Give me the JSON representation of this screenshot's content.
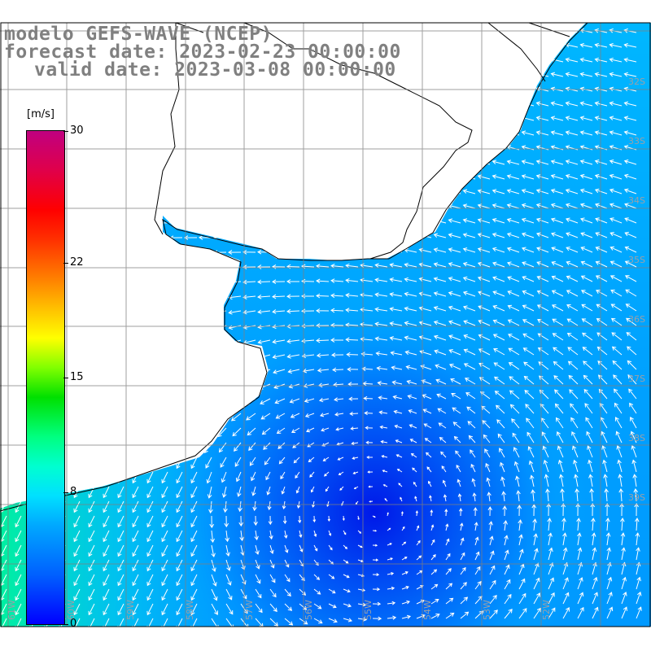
{
  "title": {
    "line1": "modelo GEFS-WAVE (NCEP)",
    "line2": "forecast date: 2023-02-23 00:00:00",
    "line3": "valid date: 2023-03-08 00:00:00"
  },
  "colorbar": {
    "unit": "[m/s]",
    "ticks": [
      {
        "value": 0,
        "label": "0"
      },
      {
        "value": 8,
        "label": "8"
      },
      {
        "value": 15,
        "label": "15"
      },
      {
        "value": 22,
        "label": "22"
      },
      {
        "value": 30,
        "label": "30"
      }
    ],
    "range": [
      0,
      30
    ]
  },
  "map": {
    "land_color": "#ffffff",
    "coastline_color": "#000000",
    "grid_color": "#808080",
    "lon_labels": [
      "61W",
      "60W",
      "59W",
      "58W",
      "57W",
      "56W",
      "55W",
      "54W",
      "53W",
      "52W"
    ],
    "lat_labels": [
      "32S",
      "33S",
      "34S",
      "35S",
      "36S",
      "37S",
      "38S",
      "39S"
    ]
  }
}
